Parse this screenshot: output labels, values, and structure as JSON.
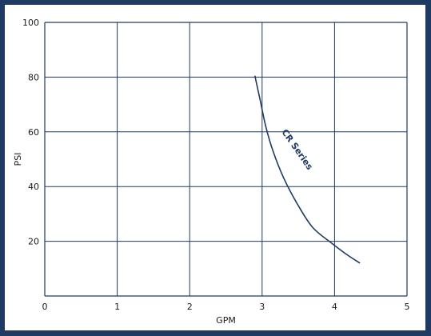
{
  "chart_data": {
    "type": "line",
    "xlabel": "GPM",
    "ylabel": "PSI",
    "xlim": [
      0,
      5
    ],
    "ylim": [
      0,
      100
    ],
    "x_ticks": [
      "0",
      "1",
      "2",
      "3",
      "4",
      "5"
    ],
    "y_ticks": [
      "20",
      "40",
      "60",
      "80",
      "100"
    ],
    "grid": true,
    "line_color": "#1f3a63",
    "background_color": "#1f3a63",
    "series": [
      {
        "name": "CR Series",
        "x": [
          2.9,
          2.97,
          3.05,
          3.15,
          3.3,
          3.5,
          3.7,
          3.95,
          4.15,
          4.35
        ],
        "y": [
          80.5,
          72,
          62,
          53,
          43,
          33,
          25,
          19.5,
          15.5,
          12
        ]
      }
    ]
  }
}
